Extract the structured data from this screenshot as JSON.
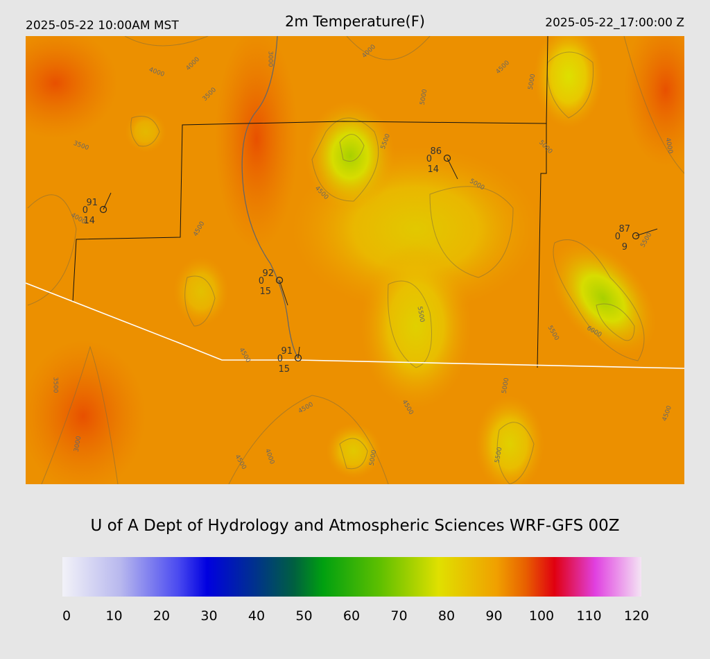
{
  "header": {
    "left": "2025-05-22 10:00AM MST",
    "title": "2m Temperature(F)",
    "right": "2025-05-22_17:00:00 Z"
  },
  "map": {
    "contour_labels": [
      "4000",
      "4000",
      "3500",
      "3000",
      "4000",
      "4500",
      "5000",
      "5000",
      "3500",
      "5500",
      "5000",
      "4000",
      "4500",
      "5000",
      "4000",
      "4500",
      "5500",
      "5500",
      "6000",
      "5500",
      "4500",
      "3500",
      "5000",
      "4500",
      "4500",
      "4500",
      "3000",
      "4000",
      "4500",
      "5000",
      "5500"
    ],
    "stations": [
      {
        "temp": 91,
        "left": 0,
        "bottom": 14
      },
      {
        "temp": 86,
        "left": 0,
        "bottom": 14
      },
      {
        "temp": 87,
        "left": 0,
        "bottom": 9
      },
      {
        "temp": 92,
        "left": 0,
        "bottom": 15
      },
      {
        "temp": 91,
        "left": 0,
        "bottom": 15
      }
    ]
  },
  "credit": "U of A Dept of Hydrology and Atmospheric Sciences WRF-GFS 00Z",
  "colorbar": {
    "min": 0,
    "max": 120,
    "ticks": [
      0,
      10,
      20,
      30,
      40,
      50,
      60,
      70,
      80,
      90,
      100,
      110,
      120
    ]
  }
}
